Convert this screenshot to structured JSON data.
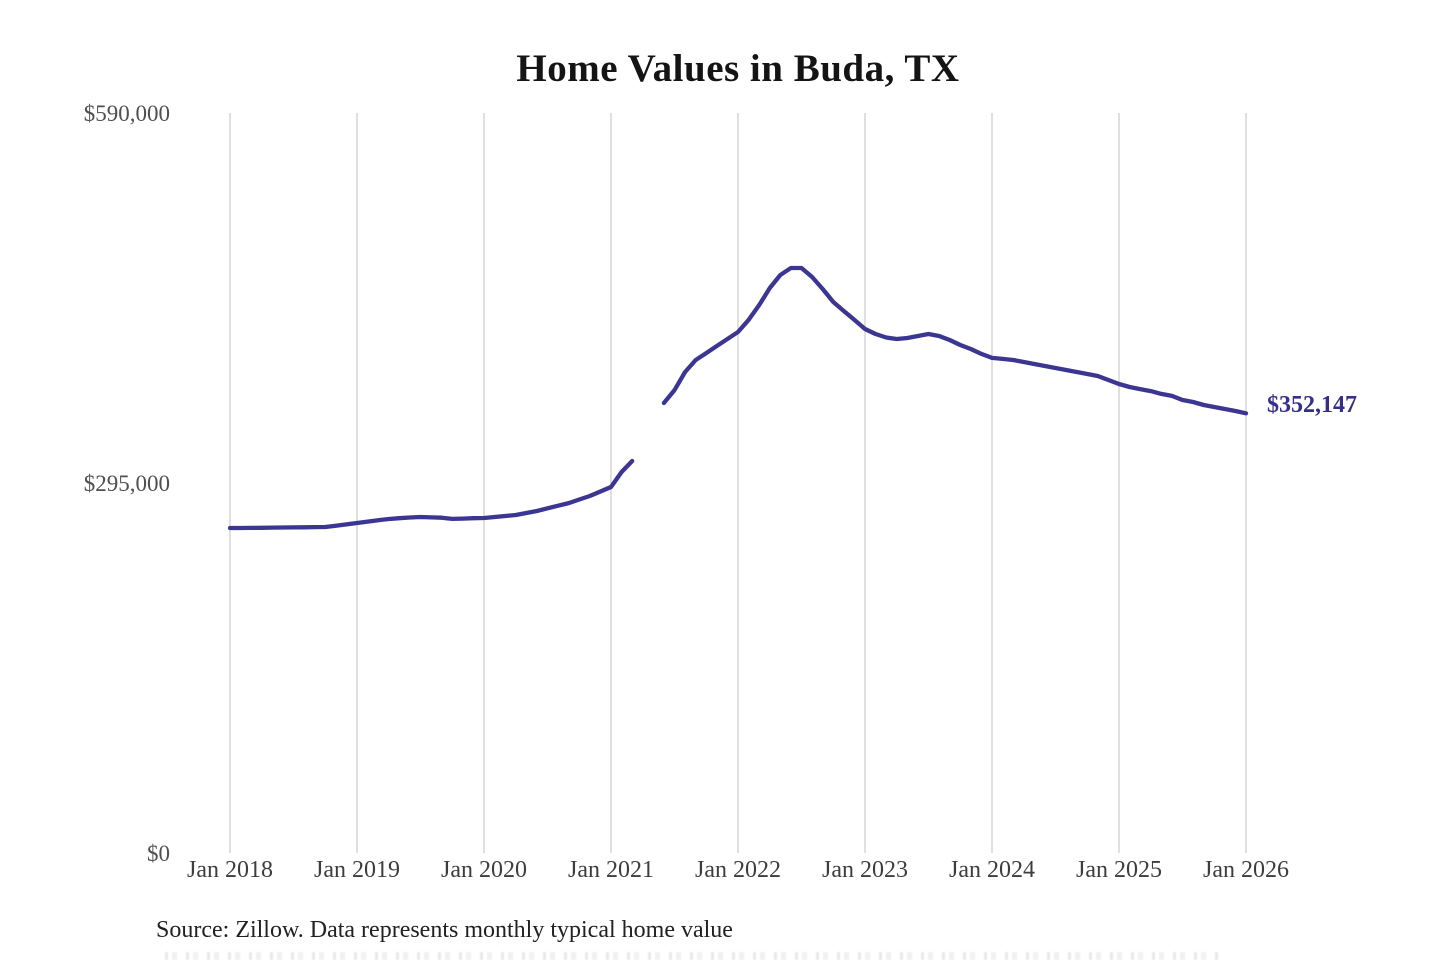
{
  "header": {
    "title": "Home Values in Buda, TX"
  },
  "footer": {
    "source_note": "Source: Zillow. Data represents monthly typical home value"
  },
  "annotation": {
    "latest_value_label": "$352,147"
  },
  "colors": {
    "line": "#3c3693",
    "end_label_text": "#343086",
    "grid": "#cbcbcb",
    "y_tick_text": "#4f4f4f",
    "x_tick_text": "#3d3d3d",
    "title_text": "#141414",
    "source_text": "#212121",
    "background": "#ffffff"
  },
  "chart_data": {
    "type": "line",
    "title": "Home Values in Buda, TX",
    "series_name": "Monthly typical home value",
    "unit": "USD",
    "xlabel": "",
    "ylabel": "",
    "ylim": [
      0,
      590000
    ],
    "grid": "vertical-only",
    "legend": "none",
    "gap_note": "line has a visible gap (no data plotted) for Apr-May 2021",
    "end_label": "$352,147",
    "y_ticks": [
      {
        "label": "$590,000",
        "value": 590000
      },
      {
        "label": "$295,000",
        "value": 295000
      },
      {
        "label": "$0",
        "value": 0
      }
    ],
    "x_ticks": [
      "Jan 2018",
      "Jan 2019",
      "Jan 2020",
      "Jan 2021",
      "Jan 2022",
      "Jan 2023",
      "Jan 2024",
      "Jan 2025",
      "Jan 2026"
    ],
    "points": [
      [
        "2018-01",
        260700
      ],
      [
        "2018-02",
        260700
      ],
      [
        "2018-03",
        260800
      ],
      [
        "2018-04",
        260900
      ],
      [
        "2018-05",
        261000
      ],
      [
        "2018-06",
        261100
      ],
      [
        "2018-07",
        261200
      ],
      [
        "2018-08",
        261300
      ],
      [
        "2018-09",
        261400
      ],
      [
        "2018-10",
        261500
      ],
      [
        "2018-11",
        262500
      ],
      [
        "2018-12",
        263600
      ],
      [
        "2019-01",
        264700
      ],
      [
        "2019-02",
        265800
      ],
      [
        "2019-03",
        266900
      ],
      [
        "2019-04",
        267900
      ],
      [
        "2019-05",
        268500
      ],
      [
        "2019-06",
        269100
      ],
      [
        "2019-07",
        269500
      ],
      [
        "2019-08",
        269200
      ],
      [
        "2019-09",
        268900
      ],
      [
        "2019-10",
        268000
      ],
      [
        "2019-11",
        268200
      ],
      [
        "2019-12",
        268500
      ],
      [
        "2020-01",
        268700
      ],
      [
        "2020-02",
        269500
      ],
      [
        "2020-03",
        270300
      ],
      [
        "2020-04",
        271100
      ],
      [
        "2020-05",
        272700
      ],
      [
        "2020-06",
        274300
      ],
      [
        "2020-07",
        276400
      ],
      [
        "2020-08",
        278500
      ],
      [
        "2020-09",
        280600
      ],
      [
        "2020-10",
        283400
      ],
      [
        "2020-11",
        286200
      ],
      [
        "2020-12",
        289800
      ],
      [
        "2021-01",
        293400
      ],
      [
        "2021-02",
        305400
      ],
      [
        "2021-03",
        314100
      ],
      [
        "2021-04",
        null
      ],
      [
        "2021-05",
        null
      ],
      [
        "2021-06",
        360400
      ],
      [
        "2021-07",
        370700
      ],
      [
        "2021-08",
        385100
      ],
      [
        "2021-09",
        394700
      ],
      [
        "2021-10",
        400200
      ],
      [
        "2021-11",
        405800
      ],
      [
        "2021-12",
        411400
      ],
      [
        "2022-01",
        417000
      ],
      [
        "2022-02",
        426600
      ],
      [
        "2022-03",
        438500
      ],
      [
        "2022-04",
        452100
      ],
      [
        "2022-05",
        462400
      ],
      [
        "2022-06",
        468000
      ],
      [
        "2022-07",
        468000
      ],
      [
        "2022-08",
        460800
      ],
      [
        "2022-09",
        451300
      ],
      [
        "2022-10",
        440900
      ],
      [
        "2022-11",
        433700
      ],
      [
        "2022-12",
        426600
      ],
      [
        "2023-01",
        419400
      ],
      [
        "2023-02",
        415400
      ],
      [
        "2023-03",
        412600
      ],
      [
        "2023-04",
        411400
      ],
      [
        "2023-05",
        412200
      ],
      [
        "2023-06",
        413800
      ],
      [
        "2023-07",
        415400
      ],
      [
        "2023-08",
        413800
      ],
      [
        "2023-09",
        410600
      ],
      [
        "2023-10",
        406600
      ],
      [
        "2023-11",
        403400
      ],
      [
        "2023-12",
        399500
      ],
      [
        "2024-01",
        396300
      ],
      [
        "2024-02",
        395500
      ],
      [
        "2024-03",
        394700
      ],
      [
        "2024-04",
        393100
      ],
      [
        "2024-05",
        391500
      ],
      [
        "2024-06",
        389900
      ],
      [
        "2024-07",
        388300
      ],
      [
        "2024-08",
        386700
      ],
      [
        "2024-09",
        385100
      ],
      [
        "2024-10",
        383500
      ],
      [
        "2024-11",
        381900
      ],
      [
        "2024-12",
        378700
      ],
      [
        "2025-01",
        375500
      ],
      [
        "2025-02",
        373100
      ],
      [
        "2025-03",
        371500
      ],
      [
        "2025-04",
        369900
      ],
      [
        "2025-05",
        367600
      ],
      [
        "2025-06",
        366000
      ],
      [
        "2025-07",
        362800
      ],
      [
        "2025-08",
        361200
      ],
      [
        "2025-09",
        358800
      ],
      [
        "2025-10",
        357200
      ],
      [
        "2025-11",
        355600
      ],
      [
        "2025-12",
        354000
      ],
      [
        "2026-01",
        352147
      ]
    ]
  }
}
